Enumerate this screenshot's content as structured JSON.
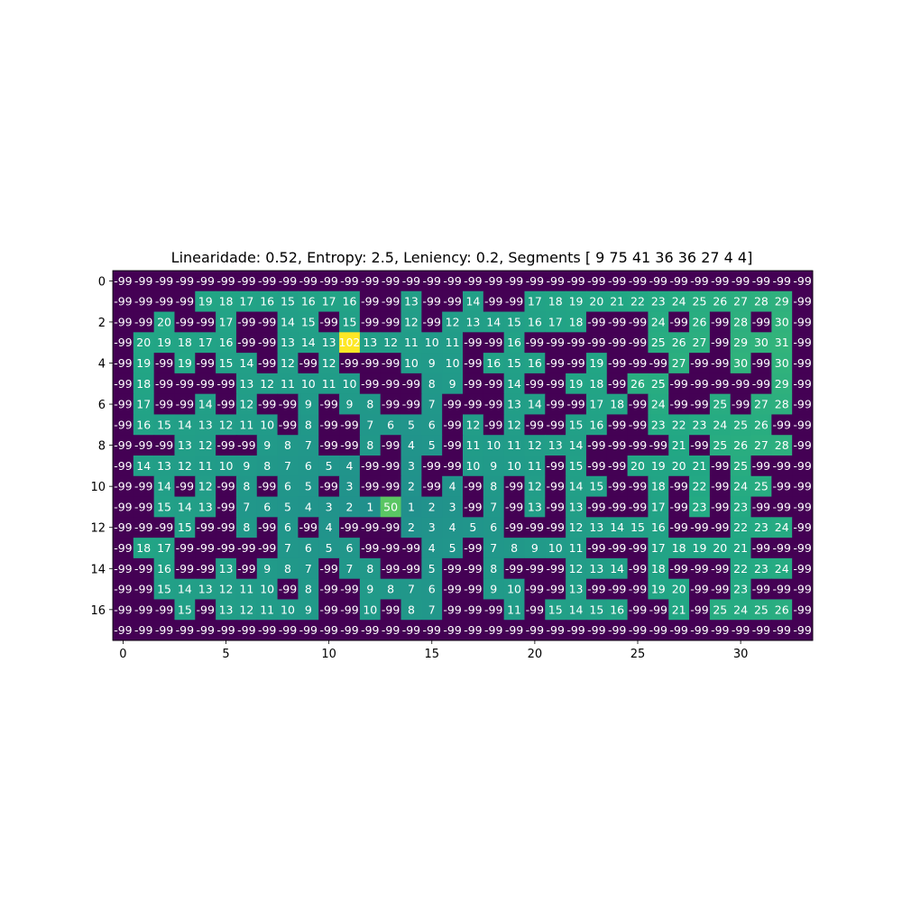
{
  "chart_data": {
    "type": "heatmap",
    "title": "Linearidade: 0.52, Entropy: 2.5, Leniency: 0.2, Segments [ 9 75 41 36 36 27  4  4]",
    "xlabel": "",
    "ylabel": "",
    "colormap": "viridis",
    "vmin": -99,
    "vmax": 102,
    "xticks": [
      0,
      5,
      10,
      15,
      20,
      25,
      30
    ],
    "yticks": [
      0,
      2,
      4,
      6,
      8,
      10,
      12,
      14,
      16
    ],
    "rows": 18,
    "cols": 34,
    "z": [
      [
        -99,
        -99,
        -99,
        -99,
        -99,
        -99,
        -99,
        -99,
        -99,
        -99,
        -99,
        -99,
        -99,
        -99,
        -99,
        -99,
        -99,
        -99,
        -99,
        -99,
        -99,
        -99,
        -99,
        -99,
        -99,
        -99,
        -99,
        -99,
        -99,
        -99,
        -99,
        -99,
        -99,
        -99
      ],
      [
        -99,
        -99,
        -99,
        -99,
        19,
        18,
        17,
        16,
        15,
        16,
        17,
        16,
        -99,
        -99,
        13,
        -99,
        -99,
        14,
        -99,
        -99,
        17,
        18,
        19,
        20,
        21,
        22,
        23,
        24,
        25,
        26,
        27,
        28,
        29,
        -99
      ],
      [
        -99,
        -99,
        20,
        -99,
        -99,
        17,
        -99,
        -99,
        14,
        15,
        -99,
        15,
        -99,
        -99,
        12,
        -99,
        12,
        13,
        14,
        15,
        16,
        17,
        18,
        -99,
        -99,
        -99,
        24,
        -99,
        26,
        -99,
        28,
        -99,
        30,
        -99
      ],
      [
        -99,
        20,
        19,
        18,
        17,
        16,
        -99,
        -99,
        13,
        14,
        13,
        102,
        13,
        12,
        11,
        10,
        11,
        -99,
        -99,
        16,
        -99,
        -99,
        -99,
        -99,
        -99,
        -99,
        25,
        26,
        27,
        -99,
        29,
        30,
        31,
        -99
      ],
      [
        -99,
        19,
        -99,
        19,
        -99,
        15,
        14,
        -99,
        12,
        -99,
        12,
        -99,
        -99,
        -99,
        10,
        9,
        10,
        -99,
        16,
        15,
        16,
        -99,
        -99,
        19,
        -99,
        -99,
        -99,
        27,
        -99,
        -99,
        30,
        -99,
        30,
        -99
      ],
      [
        -99,
        18,
        -99,
        -99,
        -99,
        -99,
        13,
        12,
        11,
        10,
        11,
        10,
        -99,
        -99,
        -99,
        8,
        9,
        -99,
        -99,
        14,
        -99,
        -99,
        19,
        18,
        -99,
        26,
        25,
        -99,
        -99,
        -99,
        -99,
        -99,
        29,
        -99
      ],
      [
        -99,
        17,
        -99,
        -99,
        14,
        -99,
        12,
        -99,
        -99,
        9,
        -99,
        9,
        8,
        -99,
        -99,
        7,
        -99,
        -99,
        -99,
        13,
        14,
        -99,
        -99,
        17,
        18,
        -99,
        24,
        -99,
        -99,
        25,
        -99,
        27,
        28,
        -99
      ],
      [
        -99,
        16,
        15,
        14,
        13,
        12,
        11,
        10,
        -99,
        8,
        -99,
        -99,
        7,
        6,
        5,
        6,
        -99,
        12,
        -99,
        12,
        -99,
        -99,
        15,
        16,
        -99,
        -99,
        23,
        22,
        23,
        24,
        25,
        26,
        -99,
        -99
      ],
      [
        -99,
        -99,
        -99,
        13,
        12,
        -99,
        -99,
        9,
        8,
        7,
        -99,
        -99,
        8,
        -99,
        4,
        5,
        -99,
        11,
        10,
        11,
        12,
        13,
        14,
        -99,
        -99,
        -99,
        -99,
        21,
        -99,
        25,
        26,
        27,
        28,
        -99
      ],
      [
        -99,
        14,
        13,
        12,
        11,
        10,
        9,
        8,
        7,
        6,
        5,
        4,
        -99,
        -99,
        3,
        -99,
        -99,
        10,
        9,
        10,
        11,
        -99,
        15,
        -99,
        -99,
        20,
        19,
        20,
        21,
        -99,
        25,
        -99,
        -99,
        -99
      ],
      [
        -99,
        -99,
        14,
        -99,
        12,
        -99,
        8,
        -99,
        6,
        5,
        -99,
        3,
        -99,
        -99,
        2,
        -99,
        4,
        -99,
        8,
        -99,
        12,
        -99,
        14,
        15,
        -99,
        -99,
        18,
        -99,
        22,
        -99,
        24,
        25,
        -99,
        -99
      ],
      [
        -99,
        -99,
        15,
        14,
        13,
        -99,
        7,
        6,
        5,
        4,
        3,
        2,
        1,
        50,
        1,
        2,
        3,
        -99,
        7,
        -99,
        13,
        -99,
        13,
        -99,
        -99,
        -99,
        17,
        -99,
        23,
        -99,
        23,
        -99,
        -99,
        -99
      ],
      [
        -99,
        -99,
        -99,
        15,
        -99,
        -99,
        8,
        -99,
        6,
        -99,
        4,
        -99,
        -99,
        -99,
        2,
        3,
        4,
        5,
        6,
        -99,
        -99,
        -99,
        12,
        13,
        14,
        15,
        16,
        -99,
        -99,
        -99,
        22,
        23,
        24,
        -99
      ],
      [
        -99,
        18,
        17,
        -99,
        -99,
        -99,
        -99,
        -99,
        7,
        6,
        5,
        6,
        -99,
        -99,
        -99,
        4,
        5,
        -99,
        7,
        8,
        9,
        10,
        11,
        -99,
        -99,
        -99,
        17,
        18,
        19,
        20,
        21,
        -99,
        -99,
        -99
      ],
      [
        -99,
        -99,
        16,
        -99,
        -99,
        13,
        -99,
        9,
        8,
        7,
        -99,
        7,
        8,
        -99,
        -99,
        5,
        -99,
        -99,
        8,
        -99,
        -99,
        -99,
        12,
        13,
        14,
        -99,
        18,
        -99,
        -99,
        -99,
        22,
        23,
        24,
        -99
      ],
      [
        -99,
        -99,
        15,
        14,
        13,
        12,
        11,
        10,
        -99,
        8,
        -99,
        -99,
        9,
        8,
        7,
        6,
        -99,
        -99,
        9,
        10,
        -99,
        -99,
        13,
        -99,
        -99,
        -99,
        19,
        20,
        -99,
        -99,
        23,
        -99,
        -99,
        -99
      ],
      [
        -99,
        -99,
        -99,
        15,
        -99,
        13,
        12,
        11,
        10,
        9,
        -99,
        -99,
        10,
        -99,
        8,
        7,
        -99,
        -99,
        -99,
        11,
        -99,
        15,
        14,
        15,
        16,
        -99,
        -99,
        21,
        -99,
        25,
        24,
        25,
        26,
        -99
      ],
      [
        -99,
        -99,
        -99,
        -99,
        -99,
        -99,
        -99,
        -99,
        -99,
        -99,
        -99,
        -99,
        -99,
        -99,
        -99,
        -99,
        -99,
        -99,
        -99,
        -99,
        -99,
        -99,
        -99,
        -99,
        -99,
        -99,
        -99,
        -99,
        -99,
        -99,
        -99,
        -99,
        -99,
        -99
      ]
    ]
  }
}
